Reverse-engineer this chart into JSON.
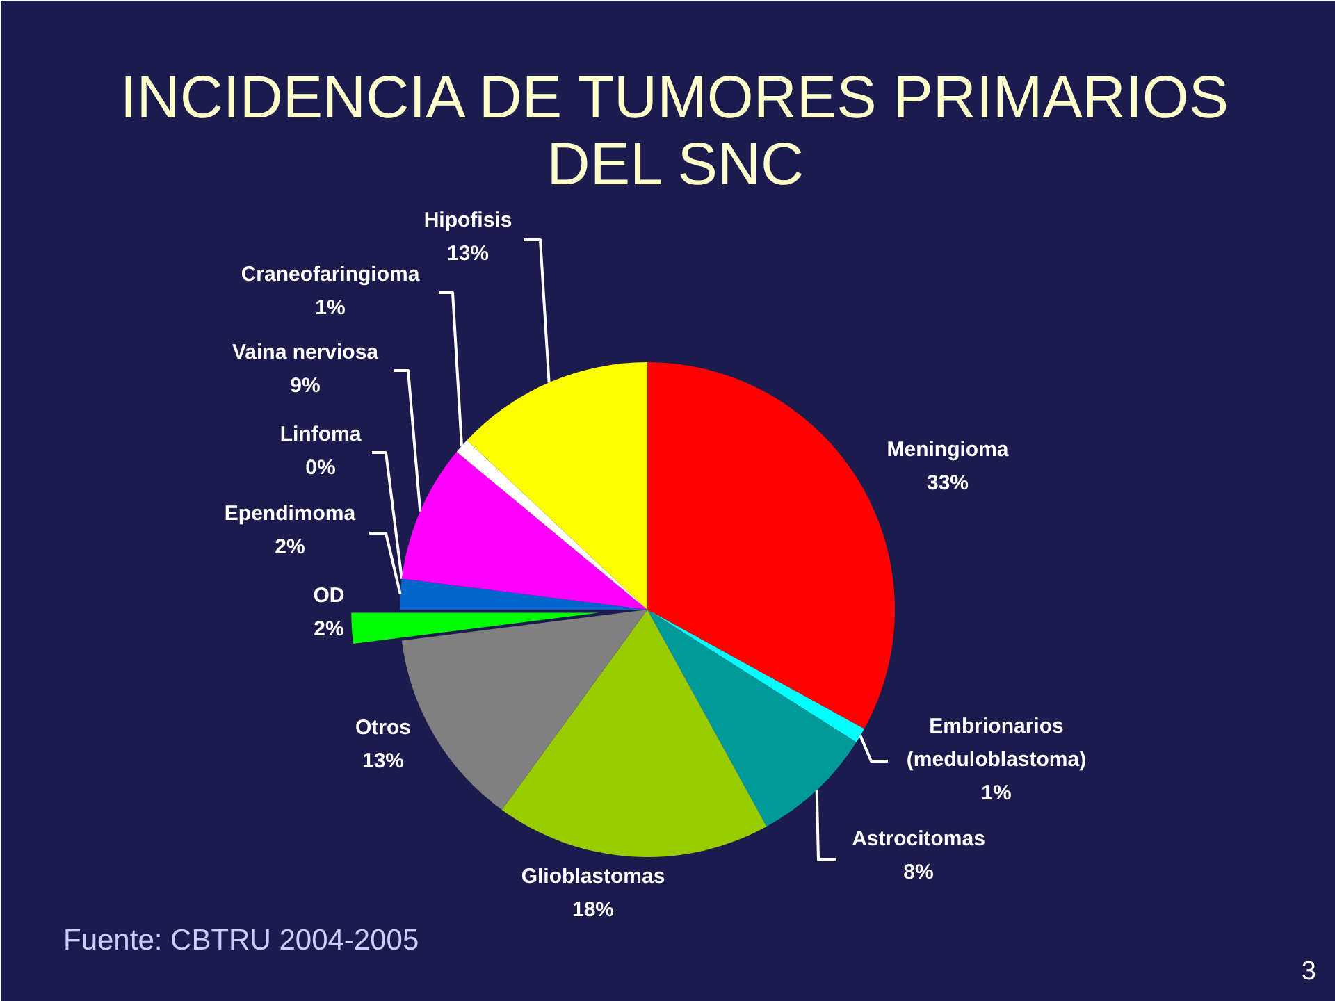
{
  "chart_data": {
    "type": "pie",
    "title": "INCIDENCIA DE TUMORES PRIMARIOS DEL SNC",
    "categories": [
      "Meningioma",
      "Embrionarios (meduloblastoma)",
      "Astrocitomas",
      "Glioblastomas",
      "Otros",
      "OD",
      "Ependimoma",
      "Linfoma",
      "Vaina nerviosa",
      "Craneofaringioma",
      "Hipofisis"
    ],
    "values": [
      33,
      1,
      8,
      18,
      13,
      2,
      2,
      0,
      9,
      1,
      13
    ],
    "colors": [
      "#ff0000",
      "#00ffff",
      "#009999",
      "#99cc00",
      "#808080",
      "#00ff00",
      "#0066cc",
      "#ffffff",
      "#ff00ff",
      "#ffffff",
      "#ffff00"
    ],
    "value_labels": [
      "33%",
      "1%",
      "8%",
      "18%",
      "13%",
      "2%",
      "2%",
      "0%",
      "9%",
      "1%",
      "13%"
    ],
    "annotations": [
      "Fuente: CBTRU 2004-2005",
      "3"
    ]
  }
}
